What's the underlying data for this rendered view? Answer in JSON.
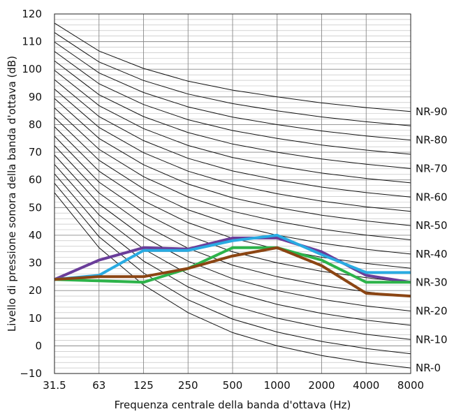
{
  "chart_data": {
    "type": "line",
    "title": "",
    "xlabel": "Frequenza centrale della banda d'ottava (Hz)",
    "ylabel": "Livello di pressione sonora della banda d'ottava (dB)",
    "x_categories": [
      "31.5",
      "63",
      "125",
      "250",
      "500",
      "1000",
      "2000",
      "4000",
      "8000"
    ],
    "y_ticks": [
      -10,
      0,
      10,
      20,
      30,
      40,
      50,
      60,
      70,
      80,
      90,
      100,
      110,
      120
    ],
    "ylim": [
      -10,
      120
    ],
    "grid": true,
    "minor_y_step": 2,
    "nr_reference": {
      "ratings": [
        0,
        5,
        10,
        15,
        20,
        25,
        30,
        35,
        40,
        45,
        50,
        55,
        60,
        65,
        70,
        75,
        80,
        85,
        90
      ],
      "formula_coefficients": {
        "a": [
          55.4,
          35.5,
          22.0,
          12.0,
          4.8,
          0.0,
          -3.5,
          -6.1,
          -8.0
        ],
        "b": [
          0.681,
          0.79,
          0.87,
          0.93,
          0.974,
          1.0,
          1.015,
          1.025,
          1.03
        ]
      },
      "labels": [
        "NR-90",
        "NR-80",
        "NR-70",
        "NR-60",
        "NR-50",
        "NR-40",
        "NR-30",
        "NR-20",
        "NR-10",
        "NR-0"
      ]
    },
    "series": [
      {
        "color": "#6a3d9a",
        "values": [
          24,
          31,
          35.5,
          35,
          39,
          39,
          34,
          25.5,
          23
        ]
      },
      {
        "color": "#29abe2",
        "values": [
          24,
          25.5,
          34.5,
          34.5,
          38,
          40,
          33,
          26.5,
          26.5
        ]
      },
      {
        "color": "#2db34a",
        "values": [
          24,
          23.5,
          23,
          28,
          35.5,
          35.5,
          31,
          23,
          23
        ]
      },
      {
        "color": "#8b4513",
        "values": [
          24,
          25,
          25,
          28,
          32.5,
          35.5,
          29,
          19,
          18
        ]
      }
    ]
  }
}
